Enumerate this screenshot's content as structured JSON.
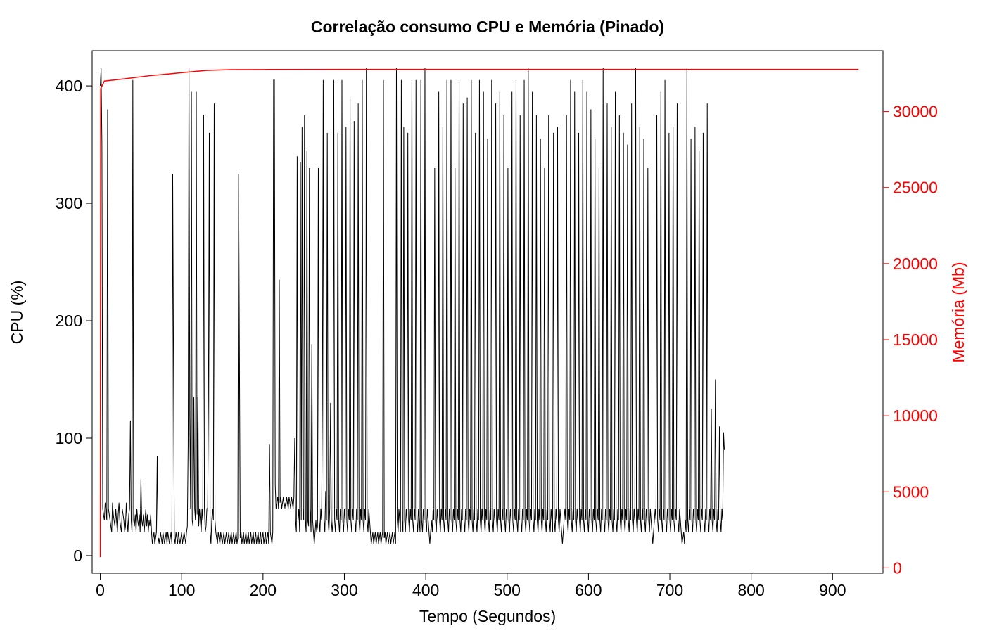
{
  "chart_data": {
    "type": "line",
    "title": "Correlação consumo CPU e Memória (Pinado)",
    "xlabel": "Tempo (Segundos)",
    "ylabel": "CPU (%)",
    "ylabel_right": "Memória (Mb)",
    "xlim": [
      -10,
      962
    ],
    "ylim": [
      -15,
      430
    ],
    "ylim_right": [
      -350,
      34000
    ],
    "x_ticks": [
      0,
      100,
      200,
      300,
      400,
      500,
      600,
      700,
      800,
      900
    ],
    "x_tick_labels": [
      "0",
      "100",
      "200",
      "300",
      "400",
      "500",
      "600",
      "700",
      "800",
      "900"
    ],
    "y_ticks": [
      0,
      100,
      200,
      300,
      400
    ],
    "y_tick_labels": [
      "0",
      "100",
      "200",
      "300",
      "400"
    ],
    "y_right_ticks": [
      0,
      5000,
      10000,
      15000,
      20000,
      25000,
      30000
    ],
    "y_right_tick_labels": [
      "0",
      "5000",
      "10000",
      "15000",
      "20000",
      "25000",
      "30000"
    ],
    "grid": false,
    "colors": {
      "cpu": "#000000",
      "memory": "#ff0000",
      "axis": "#000000",
      "right_axis": "#ff0000"
    },
    "series": [
      {
        "key": "cpu",
        "axis": "left",
        "x_start": 0,
        "x_step": 1,
        "values": [
          400,
          415,
          350,
          40,
          35,
          30,
          45,
          40,
          30,
          380,
          40,
          35,
          30,
          25,
          20,
          45,
          35,
          30,
          25,
          40,
          30,
          20,
          35,
          45,
          30,
          25,
          20,
          40,
          35,
          30,
          20,
          25,
          45,
          30,
          20,
          35,
          40,
          115,
          30,
          20,
          405,
          30,
          25,
          35,
          20,
          40,
          30,
          25,
          35,
          20,
          65,
          30,
          25,
          35,
          20,
          30,
          40,
          25,
          35,
          20,
          30,
          25,
          35,
          20,
          10,
          15,
          20,
          10,
          15,
          20,
          85,
          10,
          15,
          10,
          20,
          15,
          10,
          20,
          15,
          10,
          15,
          20,
          10,
          20,
          15,
          10,
          15,
          20,
          10,
          325,
          165,
          15,
          10,
          20,
          15,
          10,
          20,
          15,
          10,
          15,
          20,
          10,
          15,
          20,
          15,
          10,
          20,
          25,
          95,
          415,
          120,
          40,
          395,
          30,
          25,
          135,
          40,
          30,
          395,
          35,
          135,
          25,
          40,
          30,
          20,
          40,
          30,
          375,
          40,
          20,
          25,
          40,
          40,
          135,
          360,
          20,
          10,
          30,
          40,
          30,
          385,
          30,
          20,
          15,
          10,
          20,
          15,
          10,
          20,
          15,
          10,
          15,
          20,
          10,
          15,
          20,
          10,
          15,
          20,
          10,
          15,
          20,
          10,
          15,
          20,
          10,
          15,
          20,
          10,
          15,
          325,
          175,
          15,
          20,
          10,
          15,
          20,
          10,
          15,
          20,
          10,
          15,
          20,
          10,
          15,
          20,
          10,
          15,
          20,
          10,
          15,
          20,
          10,
          15,
          20,
          10,
          15,
          20,
          10,
          15,
          20,
          10,
          15,
          20,
          10,
          15,
          20,
          10,
          95,
          20,
          15,
          10,
          20,
          405,
          405,
          60,
          40,
          45,
          50,
          40,
          235,
          45,
          50,
          40,
          45,
          50,
          40,
          45,
          40,
          50,
          45,
          40,
          50,
          45,
          40,
          50,
          45,
          40,
          50,
          100,
          30,
          20,
          340,
          30,
          40,
          20,
          335,
          30,
          365,
          40,
          30,
          375,
          30,
          20,
          345,
          30,
          25,
          330,
          40,
          20,
          180,
          30,
          20,
          10,
          20,
          30,
          20,
          25,
          330,
          30,
          20,
          40,
          30,
          130,
          405,
          30,
          20,
          55,
          30,
          360,
          30,
          20,
          40,
          130,
          30,
          20,
          30,
          405,
          30,
          20,
          40,
          30,
          360,
          30,
          20,
          40,
          30,
          405,
          30,
          20,
          40,
          30,
          365,
          30,
          20,
          40,
          30,
          390,
          30,
          20,
          40,
          30,
          370,
          30,
          20,
          40,
          30,
          385,
          30,
          20,
          40,
          30,
          405,
          30,
          20,
          40,
          30,
          415,
          30,
          20,
          40,
          30,
          20,
          10,
          15,
          20,
          10,
          15,
          20,
          10,
          15,
          20,
          10,
          15,
          20,
          10,
          15,
          20,
          405,
          15,
          20,
          10,
          15,
          20,
          10,
          15,
          20,
          10,
          15,
          20,
          10,
          15,
          20,
          10,
          415,
          30,
          20,
          40,
          30,
          20,
          405,
          30,
          20,
          365,
          30,
          20,
          40,
          30,
          360,
          30,
          20,
          40,
          30,
          405,
          30,
          20,
          40,
          30,
          405,
          30,
          20,
          40,
          30,
          20,
          405,
          30,
          20,
          40,
          30,
          415,
          30,
          20,
          40,
          30,
          20,
          10,
          20,
          30,
          20,
          40,
          30,
          330,
          30,
          20,
          40,
          30,
          395,
          30,
          20,
          40,
          30,
          365,
          30,
          20,
          40,
          30,
          405,
          30,
          20,
          40,
          30,
          405,
          30,
          20,
          40,
          30,
          330,
          30,
          20,
          40,
          30,
          405,
          30,
          20,
          40,
          30,
          385,
          30,
          20,
          40,
          30,
          390,
          30,
          20,
          40,
          30,
          405,
          30,
          20,
          40,
          30,
          360,
          30,
          20,
          40,
          30,
          405,
          30,
          20,
          40,
          30,
          395,
          30,
          20,
          40,
          30,
          355,
          30,
          20,
          40,
          30,
          405,
          30,
          20,
          40,
          30,
          385,
          30,
          20,
          40,
          30,
          395,
          30,
          20,
          40,
          30,
          375,
          30,
          20,
          40,
          30,
          330,
          30,
          20,
          40,
          30,
          395,
          30,
          20,
          40,
          30,
          405,
          30,
          20,
          40,
          30,
          375,
          30,
          20,
          40,
          30,
          405,
          30,
          20,
          40,
          30,
          415,
          30,
          20,
          40,
          30,
          395,
          30,
          20,
          40,
          30,
          375,
          30,
          20,
          40,
          30,
          355,
          30,
          20,
          40,
          30,
          330,
          30,
          20,
          40,
          30,
          375,
          30,
          20,
          40,
          30,
          20,
          360,
          30,
          20,
          40,
          30,
          365,
          30,
          20,
          40,
          30,
          20,
          10,
          20,
          30,
          40,
          30,
          375,
          30,
          20,
          40,
          30,
          405,
          30,
          20,
          40,
          30,
          395,
          30,
          20,
          40,
          30,
          360,
          30,
          20,
          40,
          30,
          405,
          30,
          20,
          40,
          30,
          395,
          30,
          20,
          40,
          30,
          380,
          30,
          20,
          40,
          30,
          355,
          30,
          20,
          40,
          30,
          330,
          30,
          20,
          40,
          30,
          415,
          30,
          20,
          40,
          30,
          385,
          30,
          20,
          40,
          30,
          365,
          30,
          20,
          40,
          30,
          395,
          30,
          20,
          40,
          30,
          375,
          30,
          20,
          40,
          30,
          360,
          30,
          20,
          40,
          30,
          350,
          30,
          20,
          40,
          30,
          385,
          30,
          20,
          40,
          30,
          415,
          30,
          20,
          40,
          30,
          365,
          30,
          20,
          40,
          30,
          355,
          30,
          20,
          40,
          30,
          330,
          30,
          20,
          40,
          30,
          20,
          10,
          20,
          30,
          40,
          30,
          375,
          30,
          20,
          40,
          30,
          395,
          30,
          20,
          40,
          30,
          405,
          30,
          20,
          40,
          30,
          360,
          30,
          20,
          40,
          30,
          365,
          30,
          20,
          40,
          30,
          385,
          30,
          20,
          40,
          30,
          20,
          10,
          15,
          20,
          10,
          30,
          20,
          415,
          30,
          20,
          40,
          30,
          355,
          30,
          20,
          40,
          30,
          365,
          30,
          20,
          40,
          30,
          345,
          30,
          20,
          40,
          30,
          360,
          30,
          20,
          40,
          30,
          385,
          30,
          20,
          40,
          30,
          125,
          30,
          20,
          40,
          30,
          150,
          30,
          20,
          40,
          30,
          110,
          30,
          20,
          40,
          30,
          105,
          90
        ]
      },
      {
        "key": "memory",
        "axis": "right",
        "points": [
          [
            0,
            700
          ],
          [
            0.5,
            31500
          ],
          [
            5,
            32000
          ],
          [
            30,
            32150
          ],
          [
            60,
            32350
          ],
          [
            90,
            32500
          ],
          [
            110,
            32600
          ],
          [
            130,
            32700
          ],
          [
            160,
            32750
          ],
          [
            200,
            32760
          ],
          [
            300,
            32770
          ],
          [
            400,
            32770
          ],
          [
            500,
            32770
          ],
          [
            600,
            32770
          ],
          [
            700,
            32770
          ],
          [
            800,
            32770
          ],
          [
            900,
            32770
          ],
          [
            932,
            32770
          ]
        ]
      }
    ]
  }
}
